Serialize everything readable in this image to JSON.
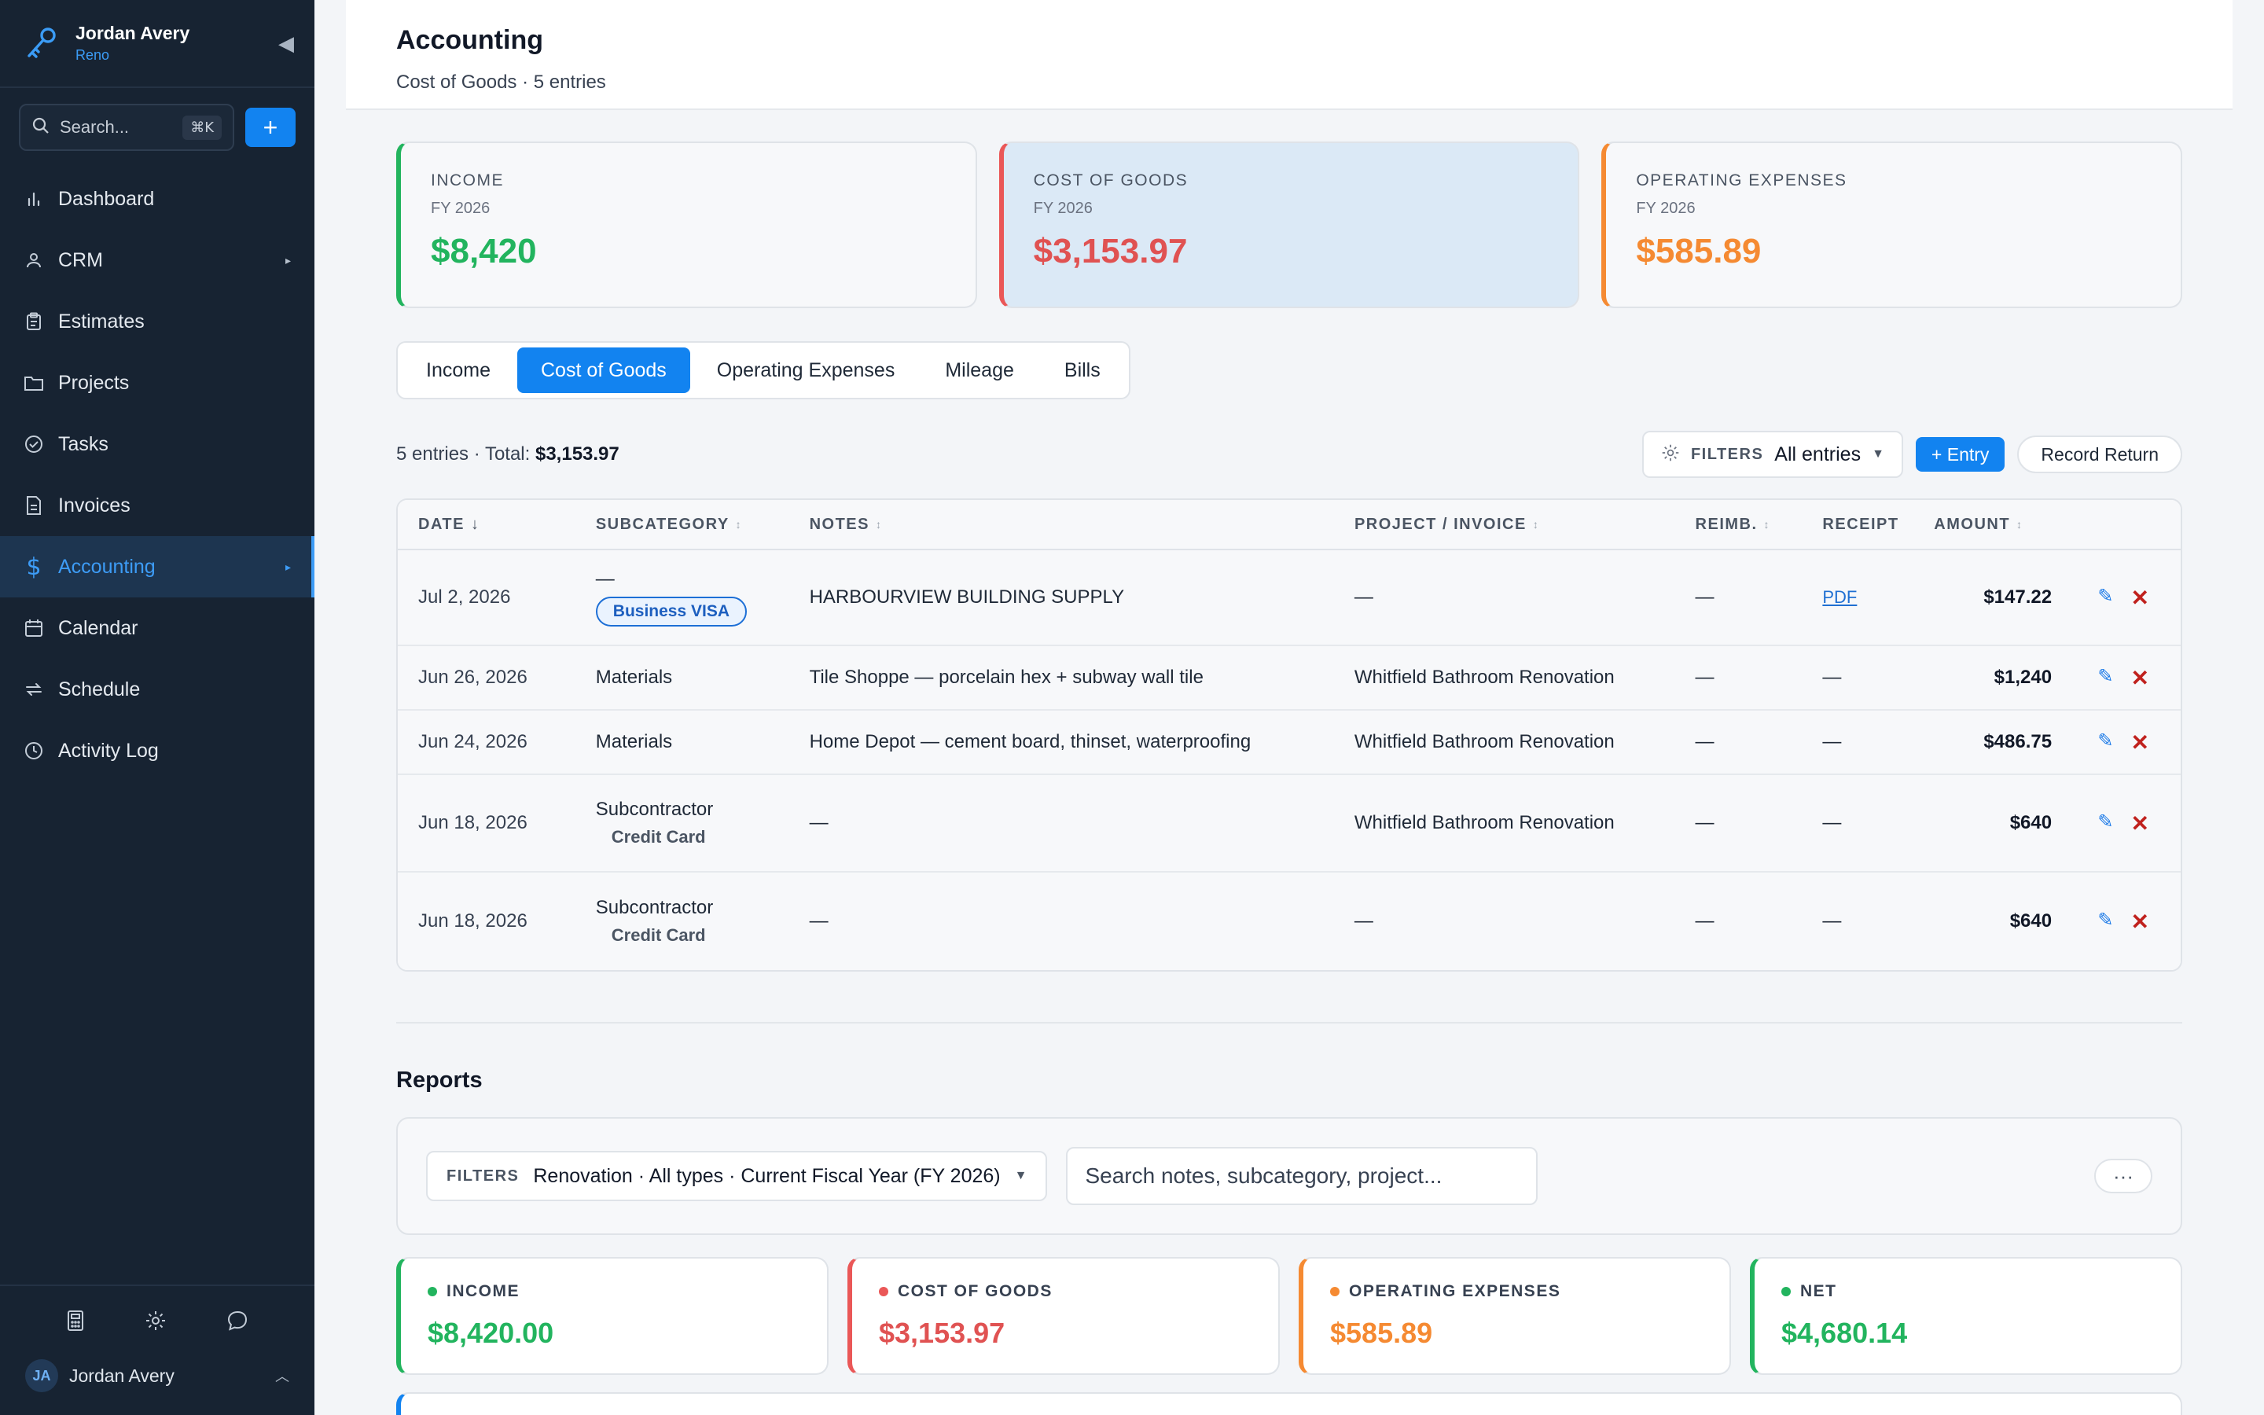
{
  "sidebar": {
    "user_name": "Jordan Avery",
    "user_location": "Reno",
    "search_placeholder": "Search...",
    "search_shortcut": "⌘K",
    "add_label": "+",
    "nav": [
      {
        "label": "Dashboard",
        "icon": "bar-chart-icon"
      },
      {
        "label": "CRM",
        "icon": "user-icon",
        "arrow": "▸"
      },
      {
        "label": "Estimates",
        "icon": "clipboard-icon"
      },
      {
        "label": "Projects",
        "icon": "folder-icon"
      },
      {
        "label": "Tasks",
        "icon": "check-circle-icon"
      },
      {
        "label": "Invoices",
        "icon": "file-icon"
      },
      {
        "label": "Accounting",
        "icon": "dollar-icon",
        "arrow": "▸",
        "active": true
      },
      {
        "label": "Calendar",
        "icon": "calendar-icon"
      },
      {
        "label": "Schedule",
        "icon": "repeat-icon"
      },
      {
        "label": "Activity Log",
        "icon": "clock-icon"
      }
    ],
    "footer": {
      "avatar_initials": "JA",
      "name": "Jordan Avery",
      "caret": "^"
    }
  },
  "page": {
    "title": "Accounting",
    "subtitle": "Cost of Goods · 5 entries"
  },
  "kpis": [
    {
      "label": "INCOME",
      "period": "FY 2026",
      "value": "$8,420"
    },
    {
      "label": "COST OF GOODS",
      "period": "FY 2026",
      "value": "$3,153.97"
    },
    {
      "label": "OPERATING EXPENSES",
      "period": "FY 2026",
      "value": "$585.89"
    }
  ],
  "tabs": [
    "Income",
    "Cost of Goods",
    "Operating Expenses",
    "Mileage",
    "Bills"
  ],
  "active_tab": "Cost of Goods",
  "list": {
    "summary_prefix": "5 entries · Total: ",
    "summary_total": "$3,153.97",
    "filters_label": "FILTERS",
    "filters_value": "All entries",
    "add_entry_label": "+ Entry",
    "record_return_label": "Record Return"
  },
  "table": {
    "headers": [
      "DATE",
      "SUBCATEGORY",
      "NOTES",
      "PROJECT / INVOICE",
      "REIMB.",
      "RECEIPT",
      "AMOUNT"
    ],
    "rows": [
      {
        "date": "Jul 2, 2026",
        "subcategory": "—",
        "badge": "Business VISA",
        "notes": "HARBOURVIEW BUILDING SUPPLY",
        "project": "—",
        "reimb": "—",
        "receipt": "PDF",
        "amount": "$147.22"
      },
      {
        "date": "Jun 26, 2026",
        "subcategory": "Materials",
        "notes": "Tile Shoppe — porcelain hex + subway wall tile",
        "project": "Whitfield Bathroom Renovation",
        "reimb": "—",
        "receipt": "—",
        "amount": "$1,240"
      },
      {
        "date": "Jun 24, 2026",
        "subcategory": "Materials",
        "notes": "Home Depot — cement board, thinset, waterproofing",
        "project": "Whitfield Bathroom Renovation",
        "reimb": "—",
        "receipt": "—",
        "amount": "$486.75"
      },
      {
        "date": "Jun 18, 2026",
        "subcategory": "Subcontractor",
        "payment": "Credit Card",
        "notes": "—",
        "project": "Whitfield Bathroom Renovation",
        "reimb": "—",
        "receipt": "—",
        "amount": "$640"
      },
      {
        "date": "Jun 18, 2026",
        "subcategory": "Subcontractor",
        "payment": "Credit Card",
        "notes": "—",
        "project": "—",
        "reimb": "—",
        "receipt": "—",
        "amount": "$640"
      }
    ]
  },
  "reports": {
    "title": "Reports",
    "filters_label": "FILTERS",
    "filters_value": "Renovation · All types · Current Fiscal Year (FY 2026)",
    "search_placeholder": "Search notes, subcategory, project...",
    "more_label": "···",
    "kpis": [
      {
        "label": "INCOME",
        "value": "$8,420.00"
      },
      {
        "label": "COST OF GOODS",
        "value": "$3,153.97"
      },
      {
        "label": "OPERATING EXPENSES",
        "value": "$585.89"
      },
      {
        "label": "NET",
        "value": "$4,680.14"
      }
    ]
  },
  "colors": {
    "accent": "#1283f0",
    "income": "#22b45e",
    "cogs": "#e05252",
    "opex": "#f58a32",
    "sidebar_bg": "#172332"
  }
}
